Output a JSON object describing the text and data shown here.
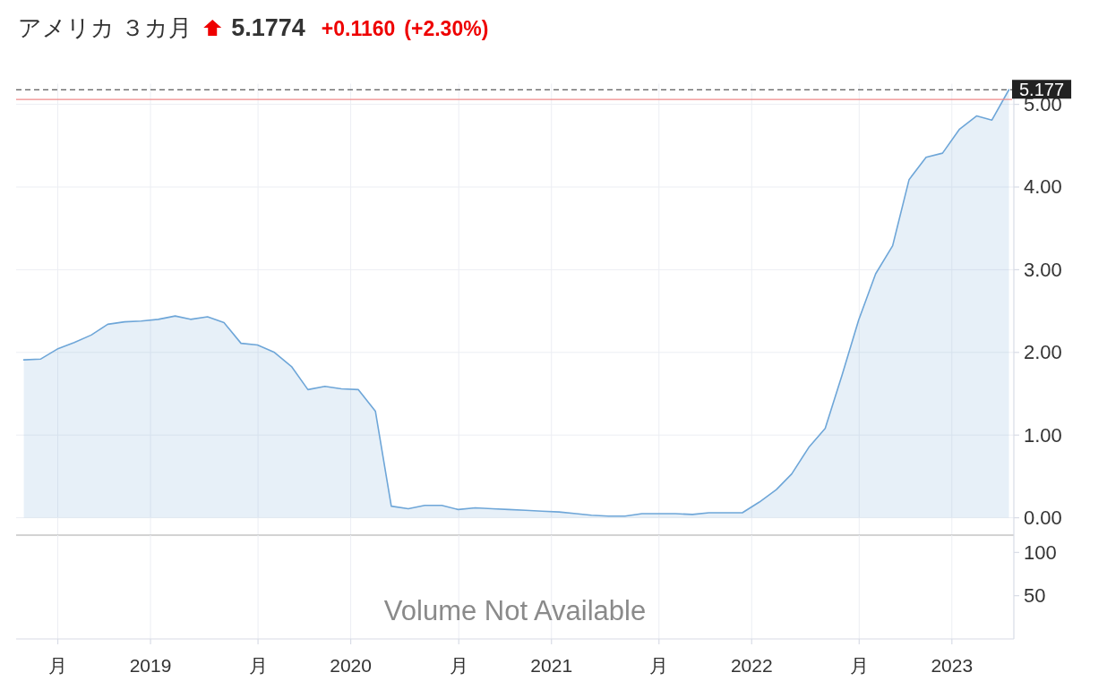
{
  "chart_data": [
    {
      "type": "area",
      "title": "アメリカ ３カ月",
      "annotations": [
        "5.1774",
        "+0.1160",
        "(+2.30%)"
      ],
      "x": [
        "2018-05-15",
        "2018-06-15",
        "2018-07-15",
        "2018-08-15",
        "2018-09-15",
        "2018-10-15",
        "2018-11-15",
        "2018-12-15",
        "2019-01-15",
        "2019-02-15",
        "2019-03-15",
        "2019-04-15",
        "2019-05-15",
        "2019-06-15",
        "2019-07-15",
        "2019-08-15",
        "2019-09-15",
        "2019-10-15",
        "2019-11-15",
        "2019-12-15",
        "2020-01-15",
        "2020-02-15",
        "2020-03-15",
        "2020-04-15",
        "2020-05-15",
        "2020-06-15",
        "2020-07-15",
        "2020-08-15",
        "2020-09-15",
        "2020-10-15",
        "2020-11-15",
        "2020-12-15",
        "2021-01-15",
        "2021-02-15",
        "2021-03-15",
        "2021-04-15",
        "2021-05-15",
        "2021-06-15",
        "2021-07-15",
        "2021-08-15",
        "2021-09-15",
        "2021-10-15",
        "2021-11-15",
        "2021-12-15",
        "2022-01-15",
        "2022-02-15",
        "2022-03-15",
        "2022-04-15",
        "2022-05-15",
        "2022-06-15",
        "2022-07-15",
        "2022-08-15",
        "2022-09-15",
        "2022-10-15",
        "2022-11-15",
        "2022-12-15",
        "2023-01-15",
        "2023-02-15",
        "2023-03-15",
        "2023-04-15"
      ],
      "values": [
        1.91,
        1.92,
        2.04,
        2.12,
        2.21,
        2.34,
        2.37,
        2.38,
        2.4,
        2.44,
        2.4,
        2.43,
        2.36,
        2.11,
        2.09,
        2.0,
        1.83,
        1.55,
        1.59,
        1.56,
        1.55,
        1.29,
        0.14,
        0.11,
        0.15,
        0.15,
        0.1,
        0.12,
        0.11,
        0.1,
        0.09,
        0.08,
        0.07,
        0.05,
        0.03,
        0.02,
        0.02,
        0.05,
        0.05,
        0.05,
        0.04,
        0.06,
        0.06,
        0.06,
        0.19,
        0.34,
        0.53,
        0.85,
        1.08,
        1.73,
        2.39,
        2.95,
        3.29,
        4.09,
        4.36,
        4.41,
        4.7,
        4.86,
        4.81,
        5.177
      ],
      "color": "#6ea6d8",
      "xlim": [
        "2018-05-01",
        "2023-04-24"
      ],
      "xticks": [
        {
          "value": "2018-07-16",
          "label": null
        },
        {
          "value": "2019",
          "label": null
        },
        {
          "value": "2019-07-16",
          "label": null
        },
        {
          "value": "2020",
          "label": null
        },
        {
          "value": "2020-07-16",
          "label": null
        },
        {
          "value": "2021",
          "label": null
        },
        {
          "value": "2021-07-16",
          "label": null
        },
        {
          "value": "2022",
          "label": null
        },
        {
          "value": "2022-07-16",
          "label": null
        },
        {
          "value": "2023",
          "label": null
        }
      ],
      "ylim": [
        -0.21,
        5.25
      ],
      "yticks": [
        {
          "value": 0,
          "label": "0.00"
        },
        {
          "value": 1,
          "label": "1.00"
        },
        {
          "value": 2,
          "label": "2.00"
        },
        {
          "value": 3,
          "label": "3.00"
        },
        {
          "value": 4,
          "label": "4.00"
        },
        {
          "value": 5,
          "label": "5.00"
        }
      ],
      "ref_lines": [
        {
          "axis": "y",
          "value": 5.06,
          "color": "#ef8a8a"
        },
        {
          "axis": "y",
          "value": 5.177,
          "label": "5.177",
          "color": "#333333",
          "line_style": "dashed"
        }
      ],
      "grid": true,
      "tick_labels": "y"
    },
    {
      "type": "bar",
      "annotations": [
        "Volume Not Available"
      ],
      "xlim": [
        "2018-05-01",
        "2023-04-24"
      ],
      "xticks": [
        {
          "value": "2018-07-16",
          "label": "月"
        },
        {
          "value": "2019",
          "label": "2019"
        },
        {
          "value": "2019-07-16",
          "label": "月"
        },
        {
          "value": "2020",
          "label": "2020"
        },
        {
          "value": "2020-07-16",
          "label": "月"
        },
        {
          "value": "2021",
          "label": "2021"
        },
        {
          "value": "2021-07-16",
          "label": "月"
        },
        {
          "value": "2022",
          "label": "2022"
        },
        {
          "value": "2022-07-16",
          "label": "月"
        },
        {
          "value": "2023",
          "label": "2023"
        }
      ],
      "ylim": [
        0,
        120
      ],
      "yticks": [
        50,
        100
      ],
      "grid": "x"
    }
  ]
}
